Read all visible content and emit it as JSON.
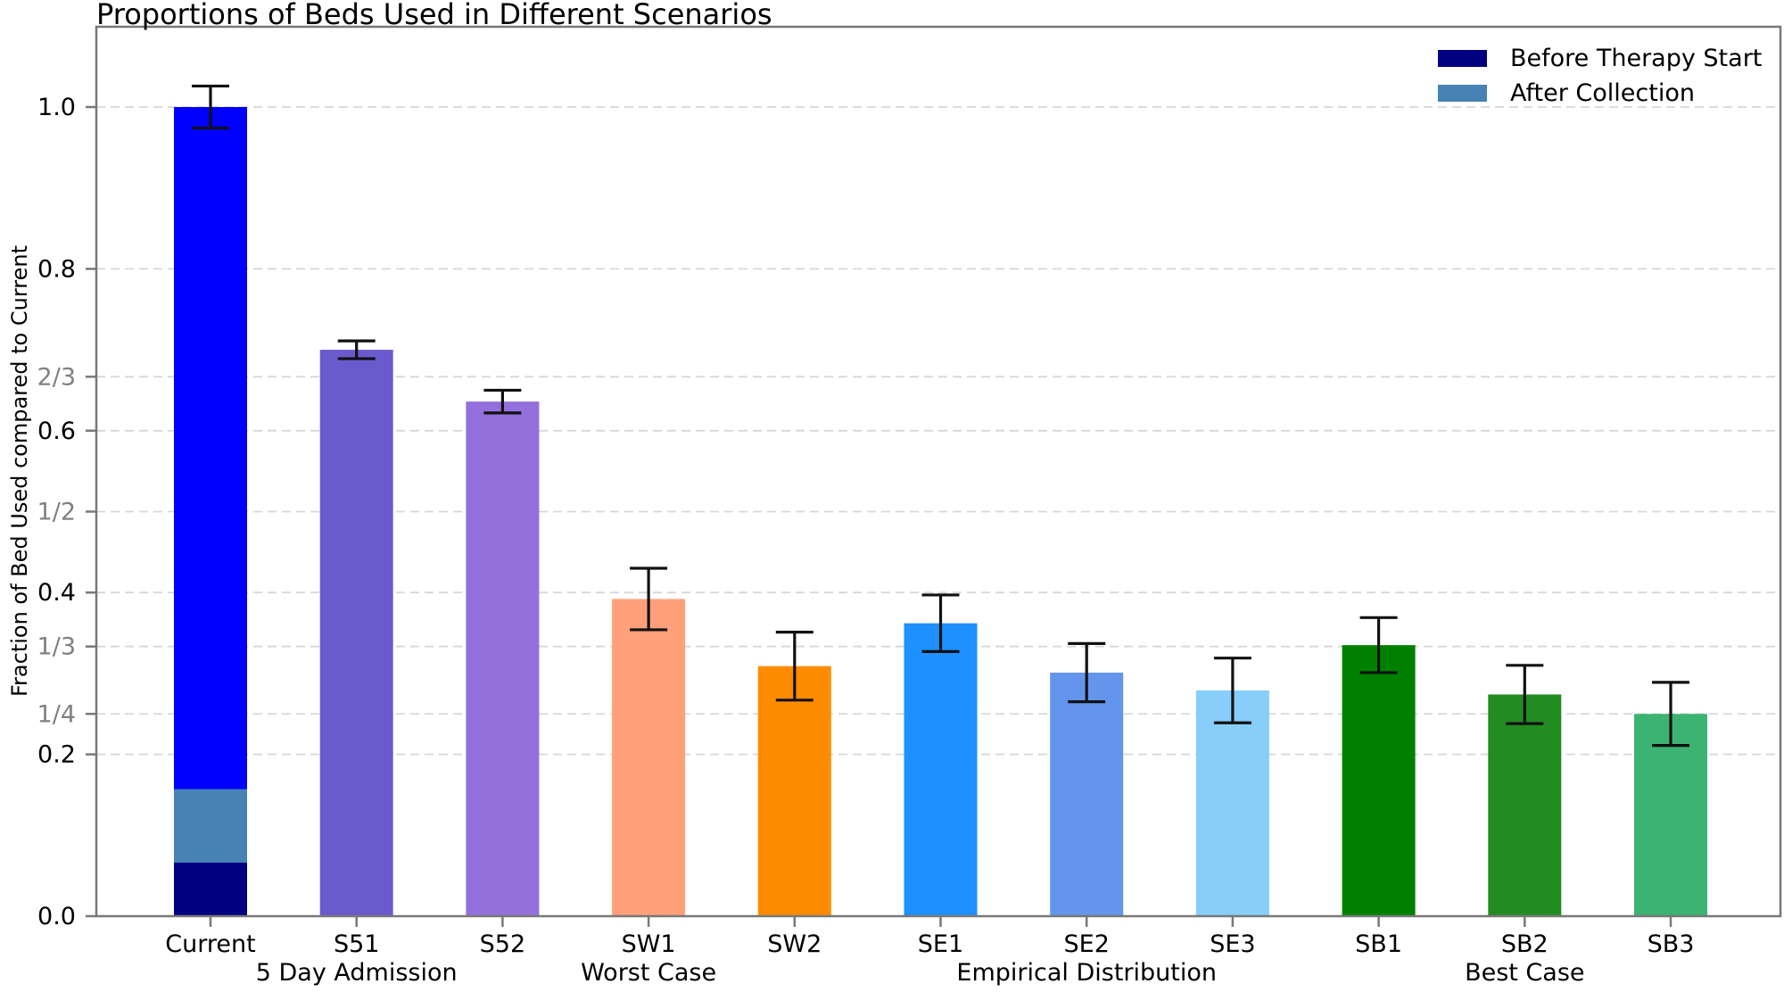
{
  "chart_data": {
    "type": "bar",
    "title": "Proportions of Beds Used in Different Scenarios",
    "ylabel": "Fraction of Bed Used compared to Current",
    "xlabel": "",
    "ylim": [
      0,
      1.1
    ],
    "grid": {
      "axis": "y",
      "style": "dashed",
      "color": "#d7d7d7"
    },
    "legend": {
      "position": "upper right",
      "items": [
        {
          "label": "Before Therapy Start",
          "color": "#000080"
        },
        {
          "label": "After Collection",
          "color": "#4682B4"
        }
      ]
    },
    "yticks": [
      {
        "value": 0.0,
        "label": "0.0",
        "color": "#000000"
      },
      {
        "value": 0.2,
        "label": "0.2",
        "color": "#000000"
      },
      {
        "value": 0.25,
        "label": "1/4",
        "color": "#808080"
      },
      {
        "value": 0.3333,
        "label": "1/3",
        "color": "#808080"
      },
      {
        "value": 0.4,
        "label": "0.4",
        "color": "#000000"
      },
      {
        "value": 0.5,
        "label": "1/2",
        "color": "#808080"
      },
      {
        "value": 0.6,
        "label": "0.6",
        "color": "#000000"
      },
      {
        "value": 0.6667,
        "label": "2/3",
        "color": "#808080"
      },
      {
        "value": 0.8,
        "label": "0.8",
        "color": "#000000"
      },
      {
        "value": 1.0,
        "label": "1.0",
        "color": "#000000"
      }
    ],
    "bars": [
      {
        "category": "Current",
        "value": 1.0,
        "error": 0.026,
        "color": "#0000FF",
        "segments": [
          {
            "label": "After Collection",
            "from": 0.066,
            "to": 0.157,
            "color": "#4682B4"
          },
          {
            "label": "Before Therapy Start",
            "from": 0.0,
            "to": 0.066,
            "color": "#000080"
          }
        ]
      },
      {
        "category": "S51",
        "value": 0.7,
        "error": 0.011,
        "color": "#6A5ACD"
      },
      {
        "category": "S52",
        "value": 0.636,
        "error": 0.014,
        "color": "#9370DB"
      },
      {
        "category": "SW1",
        "value": 0.392,
        "error": 0.038,
        "color": "#FFA07A"
      },
      {
        "category": "SW2",
        "value": 0.309,
        "error": 0.042,
        "color": "#FF8C00"
      },
      {
        "category": "SE1",
        "value": 0.362,
        "error": 0.035,
        "color": "#1E90FF"
      },
      {
        "category": "SE2",
        "value": 0.301,
        "error": 0.036,
        "color": "#6495ED"
      },
      {
        "category": "SE3",
        "value": 0.279,
        "error": 0.04,
        "color": "#87CEFA"
      },
      {
        "category": "SB1",
        "value": 0.335,
        "error": 0.034,
        "color": "#008000"
      },
      {
        "category": "SB2",
        "value": 0.274,
        "error": 0.036,
        "color": "#228B22"
      },
      {
        "category": "SB3",
        "value": 0.25,
        "error": 0.039,
        "color": "#3CB371"
      }
    ],
    "group_labels": [
      {
        "label": "5 Day Admission",
        "under": "S51"
      },
      {
        "label": "Worst Case",
        "under": "SW1"
      },
      {
        "label": "Empirical Distribution",
        "under": "SE2"
      },
      {
        "label": "Best Case",
        "under": "SB2"
      }
    ]
  }
}
